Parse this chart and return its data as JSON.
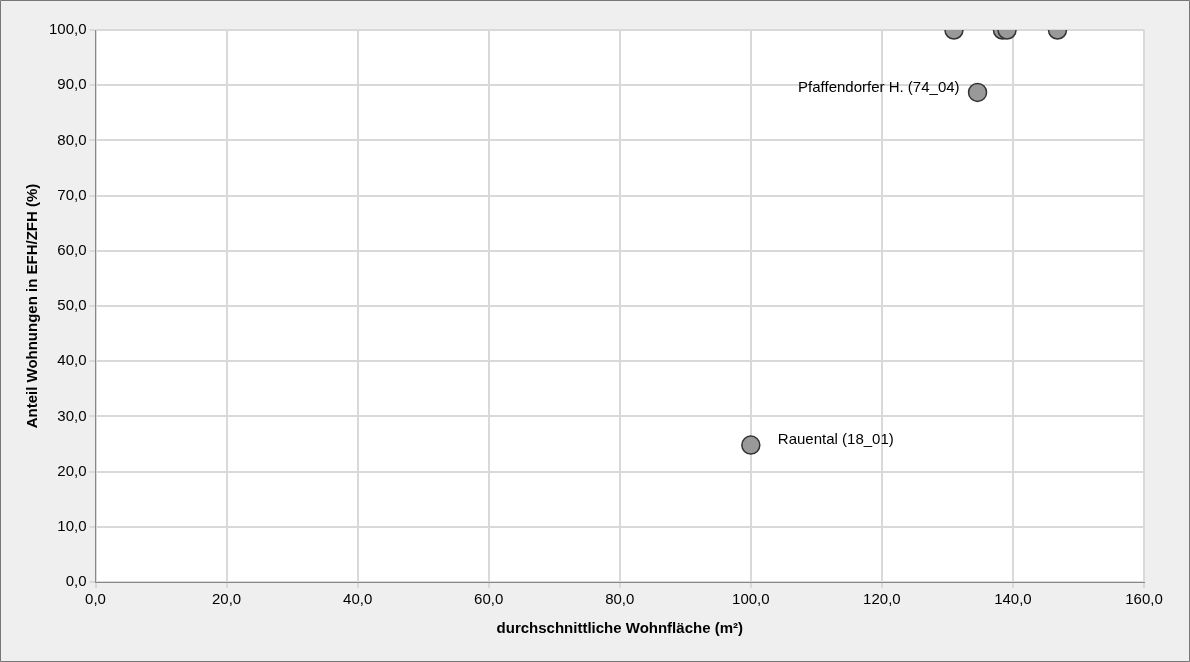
{
  "chart_data": {
    "type": "scatter",
    "xlabel": "durchschnittliche Wohnfläche (m²)",
    "ylabel": "Anteil Wohnungen in EFH/ZFH (%)",
    "series": [
      {
        "color": "#999999",
        "x": [
          100.0,
          131.0,
          134.6,
          138.4,
          139.1,
          146.8
        ],
        "values": [
          24.8,
          100,
          88.7,
          100,
          100,
          100
        ]
      }
    ],
    "xlim": [
      0,
      160
    ],
    "ylim": [
      0,
      100
    ],
    "xticks": [
      {
        "value": 0,
        "label": "0,0"
      },
      {
        "value": 20,
        "label": "20,0"
      },
      {
        "value": 40,
        "label": "40,0"
      },
      {
        "value": 60,
        "label": "60,0"
      },
      {
        "value": 80,
        "label": "80,0"
      },
      {
        "value": 100,
        "label": "100,0"
      },
      {
        "value": 120,
        "label": "120,0"
      },
      {
        "value": 140,
        "label": "140,0"
      },
      {
        "value": 160,
        "label": "160,0"
      }
    ],
    "yticks": [
      {
        "value": 0,
        "label": "0,0"
      },
      {
        "value": 10,
        "label": "10,0"
      },
      {
        "value": 20,
        "label": "20,0"
      },
      {
        "value": 30,
        "label": "30,0"
      },
      {
        "value": 40,
        "label": "40,0"
      },
      {
        "value": 50,
        "label": "50,0"
      },
      {
        "value": 60,
        "label": "60,0"
      },
      {
        "value": 70,
        "label": "70,0"
      },
      {
        "value": 80,
        "label": "80,0"
      },
      {
        "value": 90,
        "label": "90,0"
      },
      {
        "value": 100,
        "label": "100,0"
      }
    ],
    "grid": true,
    "marker": "circle",
    "legend": false,
    "annotations": [
      {
        "text": "Pfaffendorfer H. (74_04)",
        "x": 134.6,
        "y": 88.7
      },
      {
        "text": "Rauental (18_01)",
        "x": 100.0,
        "y": 24.8
      }
    ]
  }
}
